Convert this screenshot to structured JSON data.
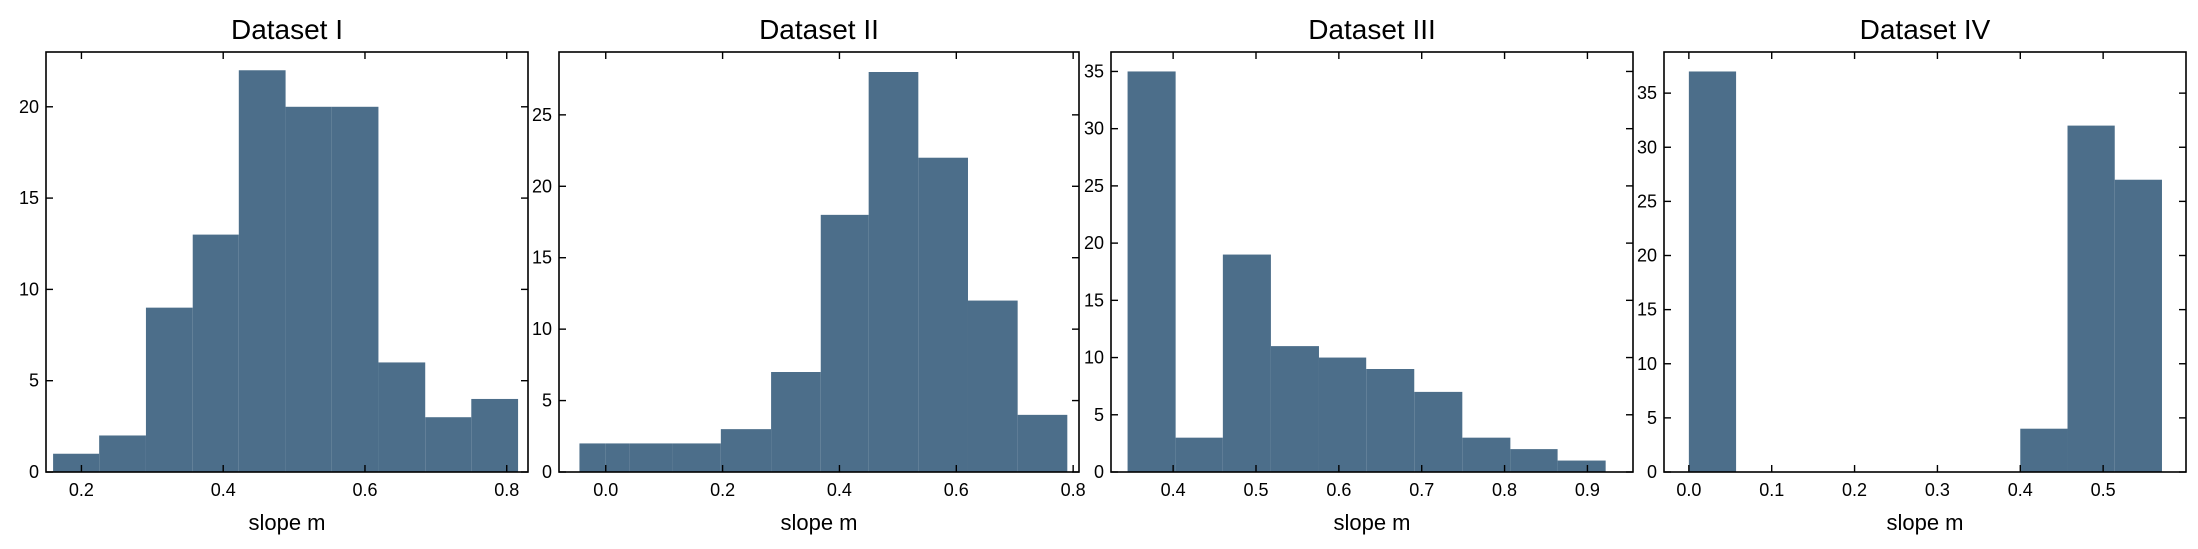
{
  "colors": {
    "bar": "#4c6e8a",
    "axis": "#000000",
    "background": "#ffffff"
  },
  "chart_data": [
    {
      "type": "bar",
      "subtype": "histogram",
      "title": "Dataset I",
      "xlabel": "slope m",
      "ylabel": "",
      "xlim": [
        0.15,
        0.83
      ],
      "ylim": [
        0,
        23
      ],
      "xticks": [
        0.2,
        0.4,
        0.6,
        0.8
      ],
      "xtick_labels": [
        "0.2",
        "0.4",
        "0.6",
        "0.8"
      ],
      "yticks": [
        0,
        5,
        10,
        15,
        20
      ],
      "ytick_labels": [
        "0",
        "5",
        "10",
        "15",
        "20"
      ],
      "bin_edges": [
        0.16,
        0.225,
        0.291,
        0.357,
        0.422,
        0.488,
        0.553,
        0.619,
        0.685,
        0.75,
        0.816
      ],
      "values": [
        1,
        2,
        9,
        13,
        22,
        20,
        20,
        6,
        3,
        4
      ],
      "grid": false
    },
    {
      "type": "bar",
      "subtype": "histogram",
      "title": "Dataset II",
      "xlabel": "slope m",
      "ylabel": "",
      "xlim": [
        -0.08,
        0.81
      ],
      "ylim": [
        0,
        29.4
      ],
      "xticks": [
        0.0,
        0.2,
        0.4,
        0.6,
        0.8
      ],
      "xtick_labels": [
        "0.0",
        "0.2",
        "0.4",
        "0.6",
        "0.8"
      ],
      "yticks": [
        0,
        5,
        10,
        15,
        20,
        25
      ],
      "ytick_labels": [
        "0",
        "5",
        "10",
        "15",
        "20",
        "25"
      ],
      "bin_edges": [
        -0.045,
        -0.001,
        0.04,
        0.115,
        0.197,
        0.283,
        0.368,
        0.45,
        0.535,
        0.62,
        0.705,
        0.79
      ],
      "values": [
        2,
        2,
        2,
        2,
        3,
        7,
        18,
        28,
        22,
        12,
        4
      ],
      "grid": false
    },
    {
      "type": "bar",
      "subtype": "histogram",
      "title": "Dataset III",
      "xlabel": "slope m",
      "ylabel": "",
      "xlim": [
        0.325,
        0.955
      ],
      "ylim": [
        0,
        36.7
      ],
      "xticks": [
        0.4,
        0.5,
        0.6,
        0.7,
        0.8,
        0.9
      ],
      "xtick_labels": [
        "0.4",
        "0.5",
        "0.6",
        "0.7",
        "0.8",
        "0.9"
      ],
      "yticks": [
        0,
        5,
        10,
        15,
        20,
        25,
        30,
        35
      ],
      "ytick_labels": [
        "0",
        "5",
        "10",
        "15",
        "20",
        "25",
        "30",
        "35"
      ],
      "bin_edges": [
        0.345,
        0.403,
        0.46,
        0.518,
        0.576,
        0.633,
        0.691,
        0.749,
        0.807,
        0.864,
        0.922
      ],
      "values": [
        35,
        3,
        19,
        11,
        10,
        9,
        7,
        3,
        2,
        1
      ],
      "grid": false
    },
    {
      "type": "bar",
      "subtype": "histogram",
      "title": "Dataset IV",
      "xlabel": "slope m",
      "ylabel": "",
      "xlim": [
        -0.03,
        0.6
      ],
      "ylim": [
        0,
        38.8
      ],
      "xticks": [
        0.0,
        0.1,
        0.2,
        0.3,
        0.4,
        0.5
      ],
      "xtick_labels": [
        "0.0",
        "0.1",
        "0.2",
        "0.3",
        "0.4",
        "0.5"
      ],
      "yticks": [
        0,
        5,
        10,
        15,
        20,
        25,
        30,
        35
      ],
      "ytick_labels": [
        "0",
        "5",
        "10",
        "15",
        "20",
        "25",
        "30",
        "35"
      ],
      "bin_edges": [
        0.0,
        0.057,
        0.114,
        0.171,
        0.228,
        0.285,
        0.342,
        0.4,
        0.457,
        0.514,
        0.571
      ],
      "values": [
        37,
        0,
        0,
        0,
        0,
        0,
        0,
        4,
        32,
        27
      ],
      "grid": false
    }
  ]
}
